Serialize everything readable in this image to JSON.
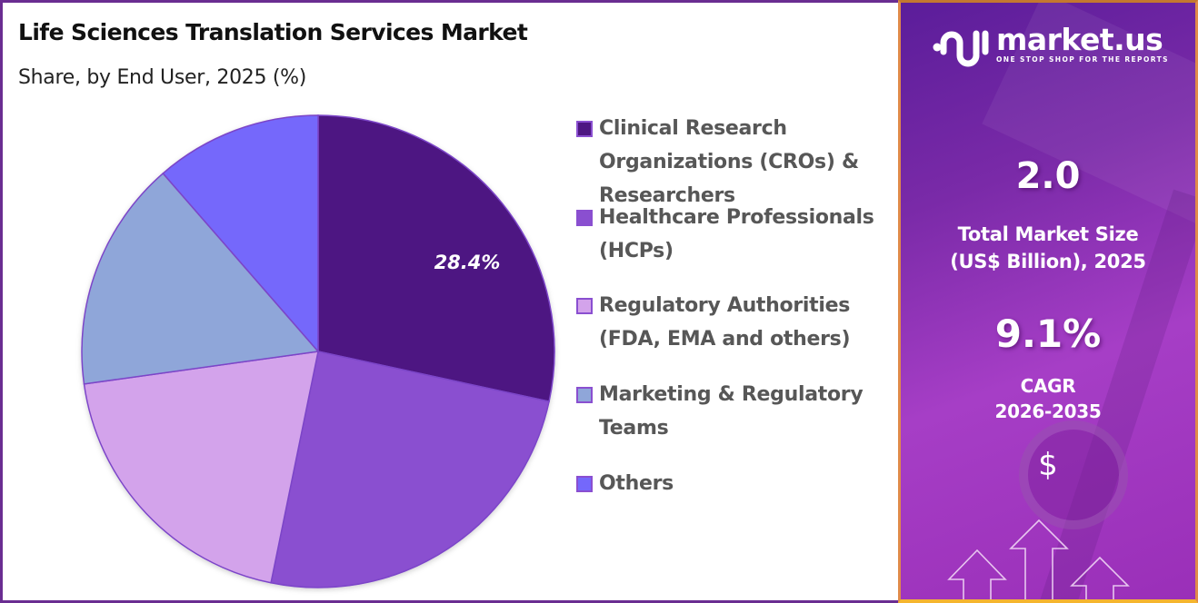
{
  "header": {
    "title": "Life Sciences Translation Services Market",
    "subtitle": "Share, by End User, 2025 (%)"
  },
  "chart_data": {
    "type": "pie",
    "title": "Life Sciences Translation Services Market",
    "subtitle": "Share, by End User, 2025 (%)",
    "categories": [
      "Clinical Research Organizations (CROs) & Researchers",
      "Healthcare Professionals (HCPs)",
      "Regulatory Authorities (FDA, EMA and others)",
      "Marketing & Regulatory Teams",
      "Others"
    ],
    "values": [
      28.4,
      24.8,
      19.6,
      15.8,
      11.4
    ],
    "colors": [
      "#4e1782",
      "#8a4fd0",
      "#d3a3eb",
      "#8fa6d9",
      "#7468fb"
    ],
    "data_labels": [
      "28.4%",
      "",
      "",
      "",
      ""
    ],
    "legend_position": "right",
    "start_angle_deg": 0,
    "direction": "clockwise"
  },
  "pie": {
    "label": "28.4%"
  },
  "legend": {
    "items": [
      {
        "label": "Clinical Research Organizations (CROs) & Researchers",
        "color": "#4e1782"
      },
      {
        "label": "Healthcare Professionals (HCPs)",
        "color": "#8a4fd0"
      },
      {
        "label": "Regulatory Authorities (FDA, EMA and others)",
        "color": "#d3a3eb"
      },
      {
        "label": "Marketing & Regulatory Teams",
        "color": "#8fa6d9"
      },
      {
        "label": "Others",
        "color": "#7468fb"
      }
    ]
  },
  "sidebar": {
    "brand": "market.us",
    "tagline": "ONE STOP SHOP FOR THE REPORTS",
    "market_size_value": "2.0",
    "market_size_label_line1": "Total Market Size",
    "market_size_label_line2": "(US$ Billion), 2025",
    "cagr_value": "9.1%",
    "cagr_label_line1": "CAGR",
    "cagr_label_line2": "2026-2035",
    "dollar_symbol": "$",
    "icons": [
      "market-us-logo-icon",
      "dollar-icon",
      "growth-arrows-icon"
    ]
  }
}
